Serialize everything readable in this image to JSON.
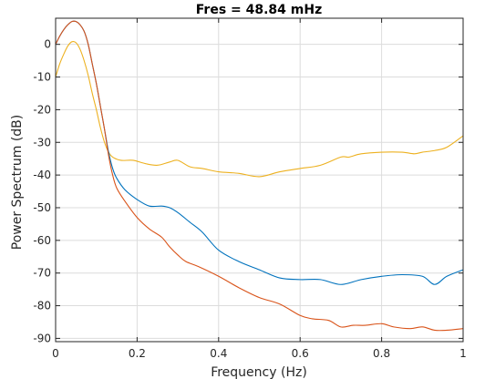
{
  "chart_data": {
    "type": "line",
    "title": "Fres = 48.84 mHz",
    "xlabel": "Frequency (Hz)",
    "ylabel": "Power Spectrum (dB)",
    "xlim": [
      0,
      1
    ],
    "ylim": [
      -91,
      8
    ],
    "xticks": [
      0,
      0.2,
      0.4,
      0.6,
      0.8,
      1
    ],
    "xtick_labels": [
      "0",
      "0.2",
      "0.4",
      "0.6",
      "0.8",
      "1"
    ],
    "yticks": [
      0,
      -10,
      -20,
      -30,
      -40,
      -50,
      -60,
      -70,
      -80,
      -90
    ],
    "ytick_labels": [
      "0",
      "-10",
      "-20",
      "-30",
      "-40",
      "-50",
      "-60",
      "-70",
      "-80",
      "-90"
    ],
    "grid": true,
    "box": true,
    "colors": [
      "#0072BD",
      "#D95319",
      "#EDB120"
    ],
    "series": [
      {
        "color": "#0072BD",
        "x": [
          0,
          0.01,
          0.02,
          0.03,
          0.04,
          0.05,
          0.06,
          0.07,
          0.08,
          0.09,
          0.1,
          0.11,
          0.12,
          0.13,
          0.14,
          0.15,
          0.17,
          0.2,
          0.23,
          0.26,
          0.28,
          0.3,
          0.33,
          0.36,
          0.4,
          0.45,
          0.5,
          0.55,
          0.6,
          0.65,
          0.7,
          0.75,
          0.8,
          0.85,
          0.9,
          0.93,
          0.96,
          1.0
        ],
        "y": [
          0,
          2.5,
          4.5,
          6,
          7,
          7,
          6,
          4,
          0,
          -6,
          -12,
          -19,
          -26,
          -33,
          -38,
          -41,
          -44.5,
          -47.5,
          -49.5,
          -49.5,
          -50,
          -51.5,
          -54.5,
          -57.5,
          -63,
          -66.5,
          -69,
          -71.5,
          -72,
          -72,
          -73.5,
          -72,
          -71,
          -70.5,
          -71,
          -73.5,
          -71,
          -69
        ]
      },
      {
        "color": "#D95319",
        "x": [
          0,
          0.01,
          0.02,
          0.03,
          0.04,
          0.05,
          0.06,
          0.07,
          0.08,
          0.09,
          0.1,
          0.11,
          0.12,
          0.13,
          0.14,
          0.15,
          0.17,
          0.2,
          0.23,
          0.26,
          0.28,
          0.3,
          0.32,
          0.35,
          0.4,
          0.45,
          0.5,
          0.55,
          0.6,
          0.63,
          0.67,
          0.7,
          0.73,
          0.76,
          0.8,
          0.83,
          0.87,
          0.9,
          0.93,
          0.96,
          1.0
        ],
        "y": [
          0,
          2.5,
          4.5,
          6,
          7,
          7,
          6,
          4,
          0,
          -6,
          -12,
          -19,
          -26,
          -34,
          -40,
          -44,
          -48,
          -53,
          -56.5,
          -59,
          -62,
          -64.5,
          -66.5,
          -68,
          -71,
          -74.5,
          -77.5,
          -79.5,
          -83,
          -84,
          -84.5,
          -86.5,
          -86,
          -86,
          -85.5,
          -86.5,
          -87,
          -86.5,
          -87.5,
          -87.5,
          -87
        ]
      },
      {
        "color": "#EDB120",
        "x": [
          0,
          0.01,
          0.02,
          0.03,
          0.04,
          0.05,
          0.06,
          0.07,
          0.08,
          0.09,
          0.1,
          0.11,
          0.12,
          0.13,
          0.14,
          0.16,
          0.19,
          0.22,
          0.25,
          0.28,
          0.3,
          0.33,
          0.36,
          0.4,
          0.45,
          0.5,
          0.55,
          0.6,
          0.65,
          0.7,
          0.72,
          0.75,
          0.8,
          0.85,
          0.88,
          0.9,
          0.93,
          0.96,
          1.0
        ],
        "y": [
          -10,
          -6,
          -3,
          -0.5,
          0.8,
          0.5,
          -1.5,
          -5,
          -9.5,
          -15,
          -20,
          -25.5,
          -30,
          -33,
          -34.5,
          -35.5,
          -35.5,
          -36.5,
          -37,
          -36,
          -35.5,
          -37.5,
          -38,
          -39,
          -39.5,
          -40.5,
          -39,
          -38,
          -37,
          -34.5,
          -34.5,
          -33.5,
          -33,
          -33,
          -33.5,
          -33,
          -32.5,
          -31.5,
          -28
        ]
      }
    ]
  }
}
